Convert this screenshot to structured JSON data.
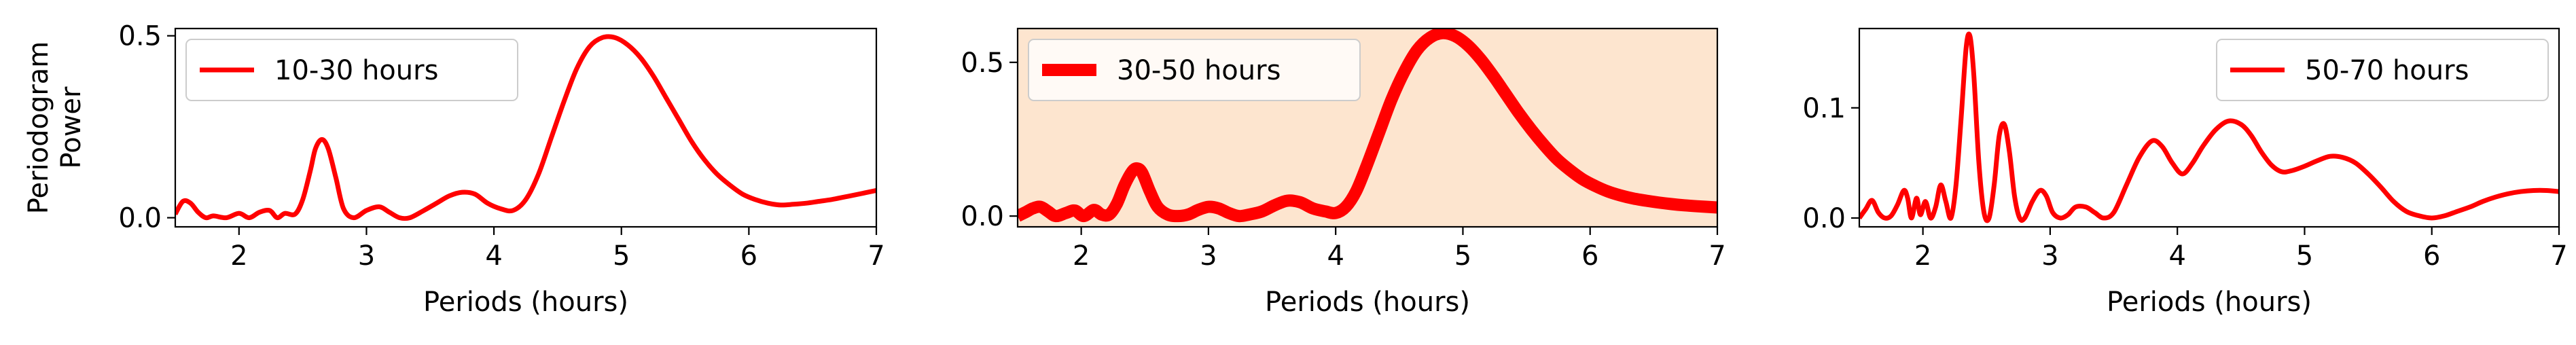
{
  "chart_data": [
    {
      "type": "line",
      "ylabel": "Periodogram\nPower",
      "xlabel": "Periods (hours)",
      "xlim": [
        1.5,
        7
      ],
      "ylim": [
        -0.025,
        0.52
      ],
      "xticks": [
        2,
        3,
        4,
        5,
        6,
        7
      ],
      "yticks": [
        0.0,
        0.5
      ],
      "ytick_labels": [
        "0.0",
        "0.5"
      ],
      "background": "#ffffff",
      "legend_position": "upper left",
      "line_width": "thin",
      "series": [
        {
          "name": "10-30 hours",
          "color": "#ff0000",
          "x": [
            1.5,
            1.56,
            1.62,
            1.68,
            1.74,
            1.8,
            1.9,
            2.0,
            2.08,
            2.16,
            2.24,
            2.3,
            2.36,
            2.44,
            2.5,
            2.56,
            2.6,
            2.65,
            2.7,
            2.76,
            2.82,
            2.9,
            3.0,
            3.1,
            3.18,
            3.26,
            3.34,
            3.45,
            3.55,
            3.65,
            3.75,
            3.85,
            3.95,
            4.05,
            4.15,
            4.25,
            4.35,
            4.45,
            4.55,
            4.65,
            4.75,
            4.85,
            4.95,
            5.05,
            5.15,
            5.25,
            5.35,
            5.45,
            5.55,
            5.65,
            5.75,
            5.85,
            5.95,
            6.05,
            6.15,
            6.25,
            6.35,
            6.45,
            6.55,
            6.65,
            6.75,
            6.85,
            7.0
          ],
          "y": [
            0.01,
            0.045,
            0.04,
            0.015,
            0.0,
            0.005,
            0.0,
            0.012,
            0.0,
            0.015,
            0.02,
            0.0,
            0.012,
            0.01,
            0.05,
            0.13,
            0.19,
            0.215,
            0.19,
            0.11,
            0.025,
            0.0,
            0.02,
            0.03,
            0.015,
            0.0,
            0.0,
            0.02,
            0.04,
            0.06,
            0.07,
            0.065,
            0.04,
            0.025,
            0.02,
            0.05,
            0.12,
            0.22,
            0.32,
            0.41,
            0.47,
            0.495,
            0.495,
            0.475,
            0.44,
            0.39,
            0.33,
            0.27,
            0.21,
            0.16,
            0.12,
            0.09,
            0.065,
            0.05,
            0.04,
            0.035,
            0.037,
            0.04,
            0.045,
            0.05,
            0.057,
            0.064,
            0.075
          ]
        }
      ]
    },
    {
      "type": "line",
      "ylabel": "",
      "xlabel": "Periods (hours)",
      "xlim": [
        1.5,
        7
      ],
      "ylim": [
        -0.035,
        0.61
      ],
      "xticks": [
        2,
        3,
        4,
        5,
        6,
        7
      ],
      "yticks": [
        0.0,
        0.5
      ],
      "ytick_labels": [
        "0.0",
        "0.5"
      ],
      "background": "#fde5cf",
      "legend_position": "upper left",
      "line_width": "thick",
      "series": [
        {
          "name": "30-50 hours",
          "color": "#ff0000",
          "x": [
            1.5,
            1.56,
            1.62,
            1.68,
            1.74,
            1.8,
            1.88,
            1.95,
            2.02,
            2.1,
            2.16,
            2.22,
            2.28,
            2.34,
            2.4,
            2.44,
            2.48,
            2.54,
            2.6,
            2.68,
            2.76,
            2.84,
            2.92,
            3.0,
            3.08,
            3.16,
            3.24,
            3.32,
            3.42,
            3.52,
            3.62,
            3.72,
            3.82,
            3.92,
            4.0,
            4.08,
            4.16,
            4.24,
            4.34,
            4.44,
            4.54,
            4.64,
            4.74,
            4.84,
            4.94,
            5.04,
            5.14,
            5.24,
            5.34,
            5.44,
            5.54,
            5.64,
            5.74,
            5.84,
            5.94,
            6.04,
            6.14,
            6.24,
            6.34,
            6.44,
            6.54,
            6.64,
            6.74,
            6.84,
            7.0
          ],
          "y": [
            0.0,
            0.012,
            0.025,
            0.03,
            0.015,
            0.0,
            0.01,
            0.018,
            0.0,
            0.02,
            0.005,
            0.005,
            0.04,
            0.1,
            0.145,
            0.155,
            0.14,
            0.08,
            0.03,
            0.005,
            0.0,
            0.005,
            0.02,
            0.03,
            0.025,
            0.01,
            0.0,
            0.005,
            0.015,
            0.035,
            0.05,
            0.045,
            0.025,
            0.015,
            0.01,
            0.03,
            0.08,
            0.16,
            0.27,
            0.38,
            0.47,
            0.54,
            0.58,
            0.595,
            0.585,
            0.555,
            0.51,
            0.455,
            0.395,
            0.335,
            0.28,
            0.23,
            0.185,
            0.15,
            0.12,
            0.098,
            0.08,
            0.067,
            0.057,
            0.05,
            0.044,
            0.039,
            0.035,
            0.032,
            0.028
          ]
        }
      ]
    },
    {
      "type": "line",
      "ylabel": "",
      "xlabel": "Periods (hours)",
      "xlim": [
        1.5,
        7
      ],
      "ylim": [
        -0.008,
        0.172
      ],
      "xticks": [
        2,
        3,
        4,
        5,
        6,
        7
      ],
      "yticks": [
        0.0,
        0.1
      ],
      "ytick_labels": [
        "0.0",
        "0.1"
      ],
      "background": "#ffffff",
      "legend_position": "upper right",
      "line_width": "thin",
      "series": [
        {
          "name": "50-70 hours",
          "color": "#ff0000",
          "x": [
            1.5,
            1.55,
            1.6,
            1.65,
            1.7,
            1.75,
            1.8,
            1.85,
            1.88,
            1.91,
            1.95,
            1.98,
            2.02,
            2.06,
            2.1,
            2.14,
            2.18,
            2.22,
            2.26,
            2.3,
            2.34,
            2.37,
            2.4,
            2.44,
            2.48,
            2.52,
            2.56,
            2.6,
            2.64,
            2.68,
            2.72,
            2.76,
            2.8,
            2.86,
            2.92,
            2.97,
            3.02,
            3.08,
            3.14,
            3.2,
            3.28,
            3.35,
            3.42,
            3.5,
            3.6,
            3.7,
            3.8,
            3.88,
            3.96,
            4.04,
            4.12,
            4.2,
            4.3,
            4.4,
            4.5,
            4.58,
            4.66,
            4.74,
            4.82,
            4.9,
            5.0,
            5.1,
            5.2,
            5.3,
            5.4,
            5.5,
            5.6,
            5.7,
            5.8,
            5.9,
            6.0,
            6.1,
            6.2,
            6.3,
            6.4,
            6.5,
            6.6,
            6.7,
            6.8,
            6.9,
            7.0
          ],
          "y": [
            0.0,
            0.008,
            0.016,
            0.005,
            0.0,
            0.002,
            0.012,
            0.025,
            0.018,
            0.0,
            0.018,
            0.003,
            0.015,
            0.0,
            0.01,
            0.03,
            0.015,
            0.0,
            0.03,
            0.09,
            0.155,
            0.165,
            0.13,
            0.05,
            0.005,
            0.0,
            0.03,
            0.075,
            0.085,
            0.06,
            0.02,
            0.0,
            0.0,
            0.015,
            0.025,
            0.02,
            0.005,
            0.0,
            0.003,
            0.01,
            0.01,
            0.005,
            0.0,
            0.005,
            0.03,
            0.055,
            0.07,
            0.065,
            0.05,
            0.04,
            0.05,
            0.065,
            0.08,
            0.088,
            0.085,
            0.075,
            0.06,
            0.048,
            0.042,
            0.043,
            0.047,
            0.052,
            0.056,
            0.055,
            0.05,
            0.04,
            0.028,
            0.015,
            0.006,
            0.002,
            0.0,
            0.002,
            0.006,
            0.01,
            0.015,
            0.019,
            0.022,
            0.024,
            0.025,
            0.025,
            0.024
          ]
        }
      ]
    }
  ]
}
